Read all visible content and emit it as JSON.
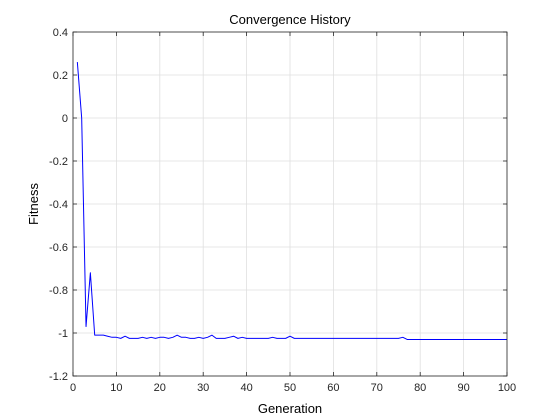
{
  "chart_data": {
    "type": "line",
    "title": "Convergence History",
    "xlabel": "Generation",
    "ylabel": "Fitness",
    "xlim": [
      0,
      100
    ],
    "ylim": [
      -1.2,
      0.4
    ],
    "xticks": [
      0,
      10,
      20,
      30,
      40,
      50,
      60,
      70,
      80,
      90,
      100
    ],
    "yticks": [
      0.4,
      0.2,
      0,
      -0.2,
      -0.4,
      -0.6,
      -0.8,
      -1,
      -1.2
    ],
    "xtick_labels": [
      "0",
      "10",
      "20",
      "30",
      "40",
      "50",
      "60",
      "70",
      "80",
      "90",
      "100"
    ],
    "ytick_labels": [
      "0.4",
      "0.2",
      "0",
      "-0.2",
      "-0.4",
      "-0.6",
      "-0.8",
      "-1",
      "-1.2"
    ],
    "grid": true,
    "line_color": "#0000ff",
    "series": [
      {
        "x": [
          1,
          2,
          3,
          4,
          5,
          6,
          7,
          8,
          9,
          10,
          11,
          12,
          13,
          14,
          15,
          16,
          17,
          18,
          19,
          20,
          21,
          22,
          23,
          24,
          25,
          26,
          27,
          28,
          29,
          30,
          31,
          32,
          33,
          34,
          35,
          36,
          37,
          38,
          39,
          40,
          41,
          42,
          43,
          44,
          45,
          46,
          47,
          48,
          49,
          50,
          51,
          52,
          53,
          54,
          55,
          56,
          57,
          58,
          59,
          60,
          61,
          62,
          63,
          64,
          65,
          66,
          67,
          68,
          69,
          70,
          71,
          72,
          73,
          74,
          75,
          76,
          77,
          78,
          79,
          80,
          81,
          82,
          83,
          84,
          85,
          86,
          87,
          88,
          89,
          90,
          91,
          92,
          93,
          94,
          95,
          96,
          97,
          98,
          99,
          100
        ],
        "values": [
          0.26,
          0.0,
          -0.97,
          -0.72,
          -1.01,
          -1.01,
          -1.01,
          -1.015,
          -1.02,
          -1.02,
          -1.025,
          -1.015,
          -1.025,
          -1.025,
          -1.025,
          -1.02,
          -1.025,
          -1.02,
          -1.025,
          -1.02,
          -1.02,
          -1.025,
          -1.02,
          -1.01,
          -1.02,
          -1.02,
          -1.025,
          -1.025,
          -1.02,
          -1.025,
          -1.02,
          -1.01,
          -1.025,
          -1.025,
          -1.025,
          -1.02,
          -1.015,
          -1.025,
          -1.02,
          -1.025,
          -1.025,
          -1.025,
          -1.025,
          -1.025,
          -1.025,
          -1.02,
          -1.025,
          -1.025,
          -1.025,
          -1.015,
          -1.025,
          -1.025,
          -1.025,
          -1.025,
          -1.025,
          -1.025,
          -1.025,
          -1.025,
          -1.025,
          -1.025,
          -1.025,
          -1.025,
          -1.025,
          -1.025,
          -1.025,
          -1.025,
          -1.025,
          -1.025,
          -1.025,
          -1.025,
          -1.025,
          -1.025,
          -1.025,
          -1.025,
          -1.025,
          -1.02,
          -1.03,
          -1.03,
          -1.03,
          -1.03,
          -1.03,
          -1.03,
          -1.03,
          -1.03,
          -1.03,
          -1.03,
          -1.03,
          -1.03,
          -1.03,
          -1.03,
          -1.03,
          -1.03,
          -1.03,
          -1.03,
          -1.03,
          -1.03,
          -1.03,
          -1.03,
          -1.03,
          -1.03
        ]
      }
    ]
  }
}
